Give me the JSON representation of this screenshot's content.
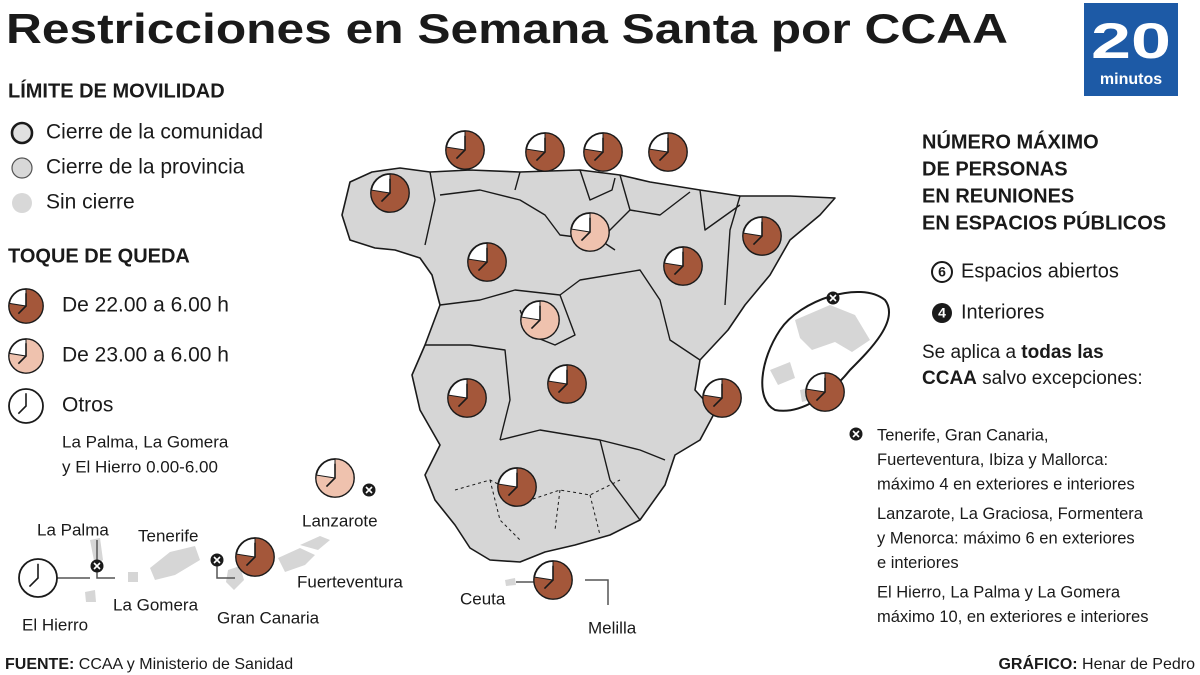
{
  "header": {
    "title": "Restricciones en Semana Santa por CCAA",
    "logo_number": "20",
    "logo_text": "minutos"
  },
  "legend_mobility": {
    "title": "LÍMITE DE MOVILIDAD",
    "items": [
      "Cierre de la comunidad",
      "Cierre de la provincia",
      "Sin cierre"
    ]
  },
  "legend_curfew": {
    "title": "TOQUE DE QUEDA",
    "items": [
      "De 22.00 a 6.00 h",
      "De 23.00 a 6.00 h",
      "Otros"
    ],
    "note_lines": [
      "La Palma, La Gomera",
      "y El Hierro 0.00-6.00"
    ]
  },
  "meetings": {
    "title_lines": [
      "NÚMERO MÁXIMO",
      "DE PERSONAS",
      "EN REUNIONES",
      "EN ESPACIOS PÚBLICOS"
    ],
    "open_number": "6",
    "open_label": "Espacios abiertos",
    "indoor_number": "4",
    "indoor_label": "Interiores",
    "rule_lines": [
      [
        "Se aplica a ",
        "todas las"
      ],
      [
        "CCAA",
        " salvo excepciones:"
      ]
    ],
    "exceptions": [
      [
        "Tenerife, Gran Canaria,",
        "Fuerteventura, Ibiza y Mallorca:",
        "máximo 4 en exteriores e interiores"
      ],
      [
        "Lanzarote, La Graciosa, Formentera",
        "y Menorca: máximo 6 en exteriores",
        "e interiores"
      ],
      [
        "El Hierro, La Palma y La Gomera",
        "máximo 10, en exteriores e interiores"
      ]
    ]
  },
  "map": {
    "labels": [
      "La Palma",
      "Tenerife",
      "Lanzarote",
      "Fuerteventura",
      "El Hierro",
      "La Gomera",
      "Gran Canaria",
      "Ceuta",
      "Melilla"
    ]
  },
  "footer": {
    "source_label": "FUENTE:",
    "source": " CCAA y Ministerio de Sanidad",
    "credit_label": "GRÁFICO:",
    "credit": " Henar de Pedro"
  }
}
